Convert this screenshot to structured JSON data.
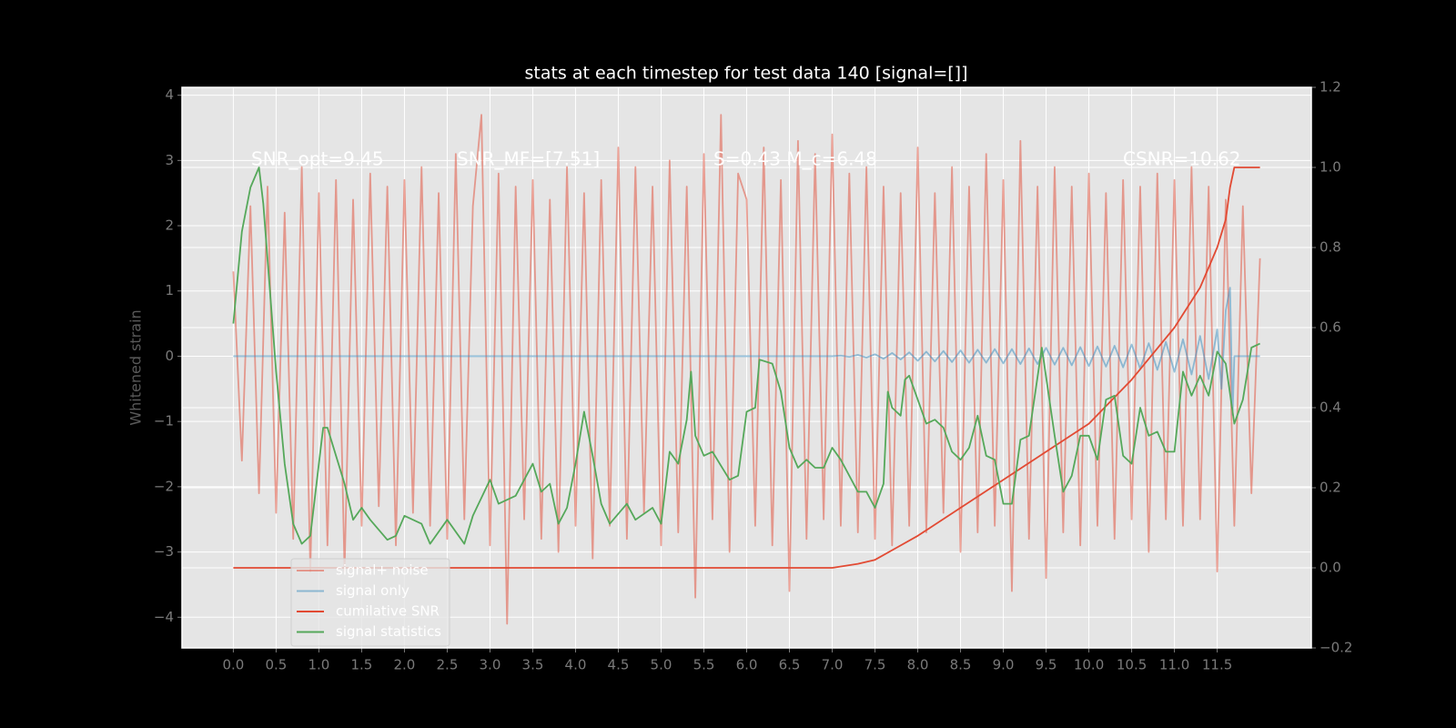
{
  "chart_data": {
    "type": "line",
    "title": "stats at each timestep for test data 140 [signal=[]]",
    "ylabel": "Whitened strain",
    "annotations": [
      "SNR_opt=9.45",
      "SNR_MF=[7.51]",
      "S=0.43  M_c=6.48",
      "CSNR=10.62"
    ],
    "xlim": [
      -0.6,
      12.6
    ],
    "xticks": [
      {
        "value": 0,
        "label": "0.0"
      },
      {
        "value": 0.5,
        "label": "0.5"
      },
      {
        "value": 1,
        "label": "1.0"
      },
      {
        "value": 1.5,
        "label": "1.5"
      },
      {
        "value": 2,
        "label": "2.0"
      },
      {
        "value": 2.5,
        "label": "2.5"
      },
      {
        "value": 3,
        "label": "3.0"
      },
      {
        "value": 3.5,
        "label": "3.5"
      },
      {
        "value": 4,
        "label": "4.0"
      },
      {
        "value": 4.5,
        "label": "4.5"
      },
      {
        "value": 5,
        "label": "5.0"
      },
      {
        "value": 5.5,
        "label": "5.5"
      },
      {
        "value": 6,
        "label": "6.0"
      },
      {
        "value": 6.5,
        "label": "6.5"
      },
      {
        "value": 7,
        "label": "7.0"
      },
      {
        "value": 7.5,
        "label": "7.5"
      },
      {
        "value": 8,
        "label": "8.0"
      },
      {
        "value": 8.5,
        "label": "8.5"
      },
      {
        "value": 9,
        "label": "9.0"
      },
      {
        "value": 9.5,
        "label": "9.5"
      },
      {
        "value": 10,
        "label": "10.0"
      },
      {
        "value": 10.5,
        "label": "10.5"
      },
      {
        "value": 11,
        "label": "11.0"
      },
      {
        "value": 11.5,
        "label": "11.5"
      }
    ],
    "ylim": [
      -4.47,
      4.12
    ],
    "yticks": [
      {
        "value": -4,
        "label": "−4"
      },
      {
        "value": -3,
        "label": "−3"
      },
      {
        "value": -2,
        "label": "−2"
      },
      {
        "value": -1,
        "label": "−1"
      },
      0,
      1,
      2,
      3,
      4
    ],
    "y2lim": [
      -0.2,
      1.2
    ],
    "y2ticks": [
      {
        "value": -0.2,
        "label": "−0.2"
      },
      {
        "value": 0,
        "label": "0.0"
      },
      {
        "value": 0.2,
        "label": "0.2"
      },
      {
        "value": 0.4,
        "label": "0.4"
      },
      {
        "value": 0.6,
        "label": "0.6"
      },
      {
        "value": 0.8,
        "label": "0.8"
      },
      {
        "value": 1,
        "label": "1.0"
      },
      {
        "value": 1.2,
        "label": "1.2"
      }
    ],
    "grid": true,
    "legend": "lower left",
    "series": [
      {
        "name": "signal+ noise",
        "color": "#E24A33",
        "alpha": 0.5,
        "x": [
          0,
          0.1,
          0.2,
          0.3,
          0.4,
          0.5,
          0.6,
          0.7,
          0.8,
          0.9,
          1,
          1.1,
          1.2,
          1.3,
          1.4,
          1.5,
          1.6,
          1.7,
          1.8,
          1.9,
          2,
          2.1,
          2.2,
          2.3,
          2.4,
          2.5,
          2.6,
          2.7,
          2.8,
          2.9,
          3,
          3.1,
          3.2,
          3.3,
          3.4,
          3.5,
          3.6,
          3.7,
          3.8,
          3.9,
          4,
          4.1,
          4.2,
          4.3,
          4.4,
          4.5,
          4.6,
          4.7,
          4.8,
          4.9,
          5,
          5.1,
          5.2,
          5.3,
          5.4,
          5.5,
          5.6,
          5.7,
          5.8,
          5.9,
          6,
          6.1,
          6.2,
          6.3,
          6.4,
          6.5,
          6.6,
          6.7,
          6.8,
          6.9,
          7,
          7.1,
          7.2,
          7.3,
          7.4,
          7.5,
          7.6,
          7.7,
          7.8,
          7.9,
          8,
          8.1,
          8.2,
          8.3,
          8.4,
          8.5,
          8.6,
          8.7,
          8.8,
          8.9,
          9,
          9.1,
          9.2,
          9.3,
          9.4,
          9.5,
          9.6,
          9.7,
          9.8,
          9.9,
          10,
          10.1,
          10.2,
          10.3,
          10.4,
          10.5,
          10.6,
          10.7,
          10.8,
          10.9,
          11,
          11.1,
          11.2,
          11.3,
          11.4,
          11.5,
          11.6,
          11.7,
          11.8,
          11.9,
          12
        ],
        "values": [
          1.3,
          -1.6,
          2.3,
          -2.1,
          2.6,
          -2.4,
          2.2,
          -2.8,
          2.9,
          -3.3,
          2.5,
          -2.9,
          2.7,
          -3.3,
          2.4,
          -2.6,
          2.8,
          -2.3,
          2.6,
          -2.9,
          2.7,
          -2.4,
          2.9,
          -2.6,
          2.5,
          -2.8,
          3.1,
          -2.5,
          2.3,
          3.7,
          -2.9,
          2.8,
          -4.1,
          2.6,
          -2.5,
          2.7,
          -2.8,
          2.4,
          -3.0,
          2.9,
          -2.6,
          2.5,
          -3.1,
          2.7,
          -2.6,
          3.2,
          -2.8,
          2.9,
          -2.4,
          2.6,
          -2.9,
          3.0,
          -2.7,
          2.6,
          -3.7,
          3.1,
          -2.5,
          3.7,
          -3.0,
          2.8,
          2.4,
          -2.6,
          3.2,
          -2.9,
          2.7,
          -3.6,
          3.3,
          -2.8,
          3.1,
          -2.5,
          3.4,
          -2.6,
          2.8,
          -2.7,
          2.9,
          -2.8,
          2.6,
          -2.9,
          2.5,
          -2.6,
          3.2,
          -2.7,
          2.5,
          -2.4,
          2.9,
          -3.0,
          2.6,
          -2.7,
          3.1,
          -2.6,
          2.7,
          -3.6,
          3.3,
          -2.8,
          2.6,
          -3.4,
          2.9,
          -2.7,
          2.6,
          -2.9,
          2.8,
          -2.6,
          2.5,
          -2.8,
          2.7,
          -2.5,
          2.6,
          -3.0,
          2.8,
          -2.5,
          2.7,
          -2.6,
          2.9,
          -2.5,
          2.6,
          -3.3,
          2.4,
          -2.6,
          2.3,
          -2.1,
          1.5
        ]
      },
      {
        "name": "signal only",
        "color": "#348ABD",
        "alpha": 0.5,
        "x": [
          0,
          7,
          7.1,
          7.2,
          7.3,
          7.4,
          7.5,
          7.6,
          7.7,
          7.8,
          7.9,
          8,
          8.1,
          8.2,
          8.3,
          8.4,
          8.5,
          8.6,
          8.7,
          8.8,
          8.9,
          9,
          9.1,
          9.2,
          9.3,
          9.4,
          9.5,
          9.6,
          9.7,
          9.8,
          9.9,
          10,
          10.1,
          10.2,
          10.3,
          10.4,
          10.5,
          10.6,
          10.7,
          10.8,
          10.9,
          11,
          11.1,
          11.2,
          11.3,
          11.4,
          11.5,
          11.55,
          11.6,
          11.65,
          11.68,
          11.7,
          12
        ],
        "values": [
          0,
          0,
          0.01,
          -0.01,
          0.02,
          -0.02,
          0.03,
          -0.04,
          0.05,
          -0.05,
          0.06,
          -0.07,
          0.07,
          -0.08,
          0.08,
          -0.09,
          0.09,
          -0.1,
          0.1,
          -0.1,
          0.11,
          -0.11,
          0.11,
          -0.12,
          0.12,
          -0.12,
          0.13,
          -0.13,
          0.13,
          -0.14,
          0.14,
          -0.15,
          0.15,
          -0.16,
          0.16,
          -0.17,
          0.18,
          -0.19,
          0.2,
          -0.21,
          0.22,
          -0.24,
          0.26,
          -0.28,
          0.31,
          -0.35,
          0.41,
          -0.5,
          0.7,
          1.05,
          -0.9,
          0,
          0
        ]
      },
      {
        "name": "cumilative SNR",
        "color": "#E24A33",
        "alpha": 1,
        "axis": "y2",
        "x": [
          0,
          7,
          7.3,
          7.5,
          7.75,
          8,
          8.5,
          9,
          9.5,
          10,
          10.5,
          11,
          11.3,
          11.5,
          11.6,
          11.65,
          11.7,
          12
        ],
        "values": [
          0,
          0,
          0.01,
          0.02,
          0.05,
          0.08,
          0.15,
          0.22,
          0.29,
          0.36,
          0.47,
          0.6,
          0.7,
          0.8,
          0.87,
          0.95,
          1,
          1
        ]
      },
      {
        "name": "signal statistics",
        "color": "#55A85A",
        "alpha": 1,
        "axis": "y2",
        "x": [
          0,
          0.1,
          0.2,
          0.3,
          0.35,
          0.4,
          0.5,
          0.6,
          0.7,
          0.8,
          0.9,
          1,
          1.05,
          1.1,
          1.2,
          1.3,
          1.4,
          1.5,
          1.6,
          1.8,
          1.9,
          2,
          2.2,
          2.3,
          2.5,
          2.7,
          2.8,
          3,
          3.1,
          3.3,
          3.5,
          3.6,
          3.7,
          3.8,
          3.9,
          4,
          4.1,
          4.2,
          4.3,
          4.4,
          4.6,
          4.7,
          4.9,
          5,
          5.1,
          5.2,
          5.3,
          5.35,
          5.4,
          5.5,
          5.6,
          5.8,
          5.9,
          6,
          6.1,
          6.15,
          6.3,
          6.4,
          6.5,
          6.6,
          6.7,
          6.8,
          6.9,
          7,
          7.1,
          7.3,
          7.4,
          7.5,
          7.6,
          7.65,
          7.7,
          7.8,
          7.85,
          7.9,
          8.1,
          8.2,
          8.3,
          8.4,
          8.5,
          8.6,
          8.7,
          8.8,
          8.9,
          9,
          9.1,
          9.2,
          9.3,
          9.45,
          9.6,
          9.7,
          9.8,
          9.9,
          10,
          10.1,
          10.2,
          10.3,
          10.4,
          10.5,
          10.6,
          10.7,
          10.8,
          10.9,
          11,
          11.1,
          11.2,
          11.3,
          11.4,
          11.5,
          11.6,
          11.7,
          11.8,
          11.9,
          12
        ],
        "values": [
          0.61,
          0.84,
          0.95,
          1,
          0.91,
          0.77,
          0.49,
          0.26,
          0.11,
          0.06,
          0.08,
          0.26,
          0.35,
          0.35,
          0.28,
          0.21,
          0.12,
          0.15,
          0.12,
          0.07,
          0.08,
          0.13,
          0.11,
          0.06,
          0.12,
          0.06,
          0.13,
          0.22,
          0.16,
          0.18,
          0.26,
          0.19,
          0.21,
          0.11,
          0.15,
          0.26,
          0.39,
          0.28,
          0.16,
          0.11,
          0.16,
          0.12,
          0.15,
          0.11,
          0.29,
          0.26,
          0.37,
          0.49,
          0.33,
          0.28,
          0.29,
          0.22,
          0.23,
          0.39,
          0.4,
          0.52,
          0.51,
          0.44,
          0.3,
          0.25,
          0.27,
          0.25,
          0.25,
          0.3,
          0.27,
          0.19,
          0.19,
          0.15,
          0.21,
          0.44,
          0.4,
          0.38,
          0.47,
          0.48,
          0.36,
          0.37,
          0.35,
          0.29,
          0.27,
          0.3,
          0.38,
          0.28,
          0.27,
          0.16,
          0.16,
          0.32,
          0.33,
          0.55,
          0.33,
          0.19,
          0.23,
          0.33,
          0.33,
          0.27,
          0.42,
          0.43,
          0.28,
          0.26,
          0.4,
          0.33,
          0.34,
          0.29,
          0.29,
          0.49,
          0.43,
          0.48,
          0.43,
          0.54,
          0.51,
          0.36,
          0.42,
          0.55,
          0.56
        ]
      }
    ]
  }
}
